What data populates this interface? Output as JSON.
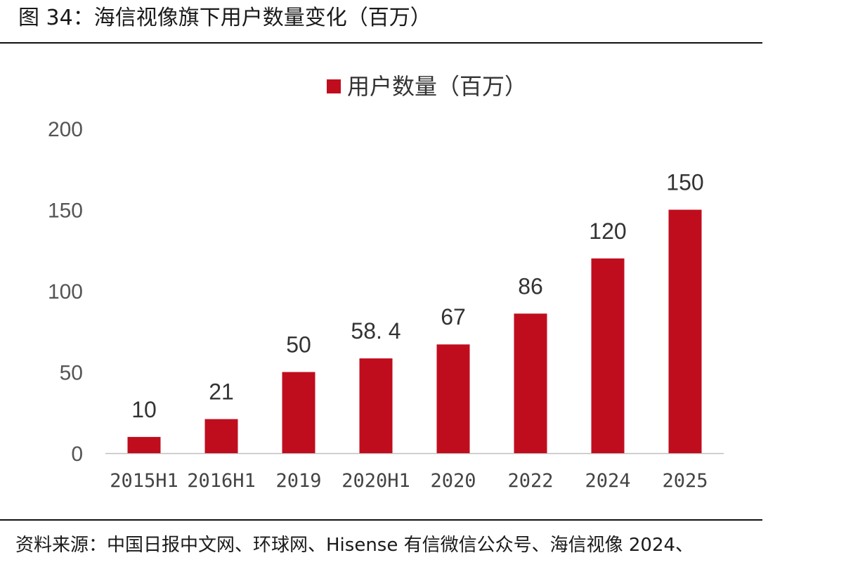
{
  "figure": {
    "title": "图 34：海信视像旗下用户数量变化（百万）",
    "source": "资料来源：中国日报中文网、环球网、Hisense 有信微信公众号、海信视像 2024、"
  },
  "colors": {
    "bar": "#C00D1E",
    "axis": "#BFBFBF"
  },
  "chart_data": {
    "type": "bar",
    "categories": [
      "2015H1",
      "2016H1",
      "2019",
      "2020H1",
      "2020",
      "2022",
      "2024",
      "2025"
    ],
    "series": [
      {
        "name": "用户数量（百万）",
        "values": [
          10,
          21,
          50,
          58.4,
          67,
          86,
          120,
          150
        ]
      }
    ],
    "data_labels": [
      "10",
      "21",
      "50",
      "58. 4",
      "67",
      "86",
      "120",
      "150"
    ],
    "ylim": [
      0,
      200
    ],
    "yticks": [
      0,
      50,
      100,
      150,
      200
    ],
    "grid": false,
    "legend": "top-center"
  }
}
